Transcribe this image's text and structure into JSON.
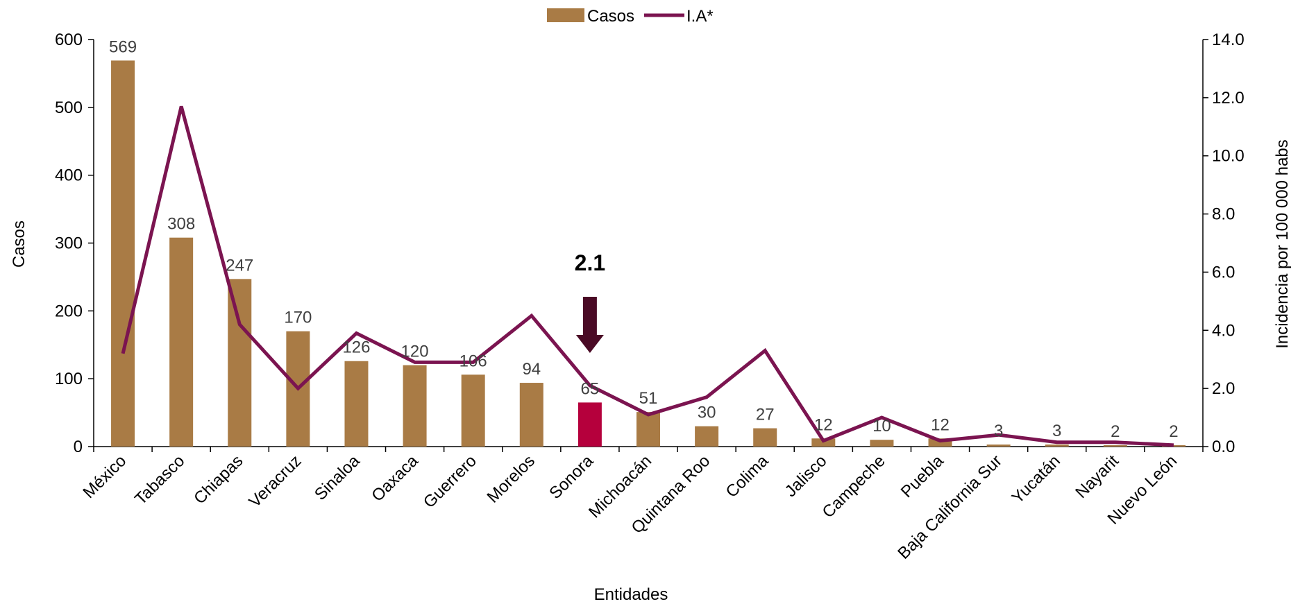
{
  "chart_data": {
    "type": "bar",
    "categories": [
      "México",
      "Tabasco",
      "Chiapas",
      "Veracruz",
      "Sinaloa",
      "Oaxaca",
      "Guerrero",
      "Morelos",
      "Sonora",
      "Michoacán",
      "Quintana Roo",
      "Colima",
      "Jalisco",
      "Campeche",
      "Puebla",
      "Baja California Sur",
      "Yucatán",
      "Nayarit",
      "Nuevo León"
    ],
    "series": [
      {
        "name": "Casos",
        "type": "bar",
        "axis": "left",
        "values": [
          569,
          308,
          247,
          170,
          126,
          120,
          106,
          94,
          65,
          51,
          30,
          27,
          12,
          10,
          12,
          3,
          3,
          2,
          2
        ],
        "data_labels": [
          "569",
          "308",
          "247",
          "170",
          "126",
          "120",
          "106",
          "94",
          "65",
          "51",
          "30",
          "27",
          "12",
          "10",
          "12",
          "3",
          "3",
          "2",
          "2"
        ]
      },
      {
        "name": "I.A*",
        "type": "line",
        "axis": "right",
        "values": [
          3.2,
          11.7,
          4.2,
          2.0,
          3.9,
          2.9,
          2.9,
          4.5,
          2.1,
          1.1,
          1.7,
          3.3,
          0.2,
          1.0,
          0.2,
          0.4,
          0.15,
          0.15,
          0.05
        ]
      }
    ],
    "xlabel": "Entidades",
    "ylabel": "Casos",
    "y2label": "Incidencia por 100 000 habs",
    "ylim": [
      0,
      600
    ],
    "y2lim": [
      0,
      14
    ],
    "yticks": [
      "0",
      "100",
      "200",
      "300",
      "400",
      "500",
      "600"
    ],
    "y2ticks": [
      "0.0",
      "2.0",
      "4.0",
      "6.0",
      "8.0",
      "10.0",
      "12.0",
      "14.0"
    ],
    "legend_position": "top-center",
    "highlight": {
      "category": "Sonora",
      "callout": "2.1"
    },
    "colors": {
      "bar": "#A97B45",
      "bar_highlight": "#B5003C",
      "line": "#7B1450",
      "arrow": "#4A0A25",
      "axis": "#000000"
    }
  }
}
